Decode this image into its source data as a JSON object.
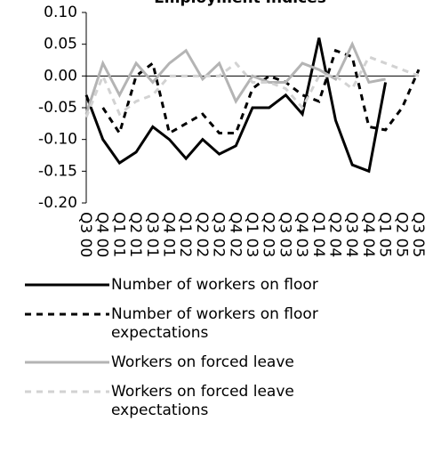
{
  "chart_data": {
    "type": "line",
    "title": "Employment Indices",
    "categories": [
      "Q3 00",
      "Q4 00",
      "Q1 01",
      "Q2 01",
      "Q3 01",
      "Q4 01",
      "Q1 02",
      "Q2 02",
      "Q3 02",
      "Q4 02",
      "Q1 03",
      "Q2 03",
      "Q3 03",
      "Q4 03",
      "Q1 04",
      "Q2 04",
      "Q3 04",
      "Q4 04",
      "Q1 05",
      "Q2 05",
      "Q3 05"
    ],
    "series": [
      {
        "name": "Number of workers on floor",
        "color": "#000000",
        "dash": "solid",
        "values": [
          -0.03,
          -0.1,
          -0.137,
          -0.12,
          -0.08,
          -0.1,
          -0.13,
          -0.1,
          -0.123,
          -0.11,
          -0.05,
          -0.05,
          -0.03,
          -0.06,
          0.06,
          -0.07,
          -0.14,
          -0.15,
          -0.01,
          null,
          null
        ]
      },
      {
        "name": "Number of workers on floor expectations",
        "color": "#000000",
        "dash": "dashed",
        "values": [
          null,
          -0.05,
          -0.09,
          0.0,
          0.02,
          -0.09,
          -0.075,
          -0.06,
          -0.09,
          -0.09,
          -0.02,
          0.0,
          -0.01,
          -0.03,
          -0.04,
          0.04,
          0.03,
          -0.08,
          -0.085,
          -0.05,
          0.01
        ]
      },
      {
        "name": "Workers on forced leave",
        "color": "#b4b4b4",
        "dash": "solid",
        "values": [
          -0.06,
          0.02,
          -0.03,
          0.02,
          -0.01,
          0.02,
          0.04,
          -0.005,
          0.02,
          -0.04,
          0.0,
          -0.01,
          -0.01,
          0.02,
          0.01,
          -0.005,
          0.05,
          -0.01,
          -0.005,
          null,
          null
        ]
      },
      {
        "name": "Workers on forced leave expectations",
        "color": "#d2d2d2",
        "dash": "dashed",
        "values": [
          -0.065,
          0.0,
          -0.06,
          -0.04,
          -0.03,
          0.0,
          0.0,
          0.0,
          0.0,
          0.02,
          -0.01,
          -0.01,
          -0.02,
          -0.05,
          0.0,
          0.0,
          -0.02,
          0.03,
          0.02,
          0.01,
          0.0
        ]
      }
    ],
    "ylim": [
      -0.2,
      0.1
    ],
    "yticks": [
      {
        "value": -0.2,
        "label": "-0.20"
      },
      {
        "value": -0.15,
        "label": "-0.15"
      },
      {
        "value": -0.1,
        "label": "-0.10"
      },
      {
        "value": -0.05,
        "label": "-0.05"
      },
      {
        "value": 0,
        "label": "0.00"
      },
      {
        "value": 0.05,
        "label": "0.05"
      },
      {
        "value": 0.1,
        "label": "0.10"
      }
    ]
  }
}
